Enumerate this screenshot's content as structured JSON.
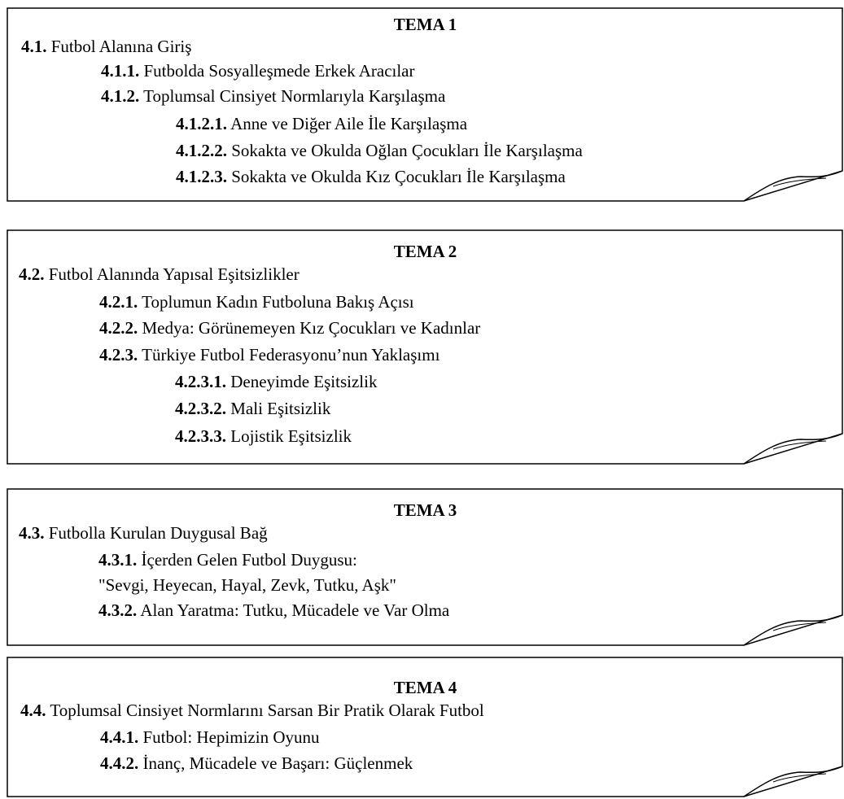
{
  "themes": [
    {
      "title": "TEMA 1",
      "lines": [
        {
          "num": "4.1.",
          "text": " Futbol Alanına Giriş"
        },
        {
          "num": "4.1.1.",
          "text": " Futbolda Sosyalleşmede Erkek Aracılar"
        },
        {
          "num": "4.1.2.",
          "text": " Toplumsal Cinsiyet Normlarıyla Karşılaşma"
        },
        {
          "num": "4.1.2.1.",
          "text": " Anne ve Diğer Aile İle Karşılaşma"
        },
        {
          "num": "4.1.2.2.",
          "text": " Sokakta ve Okulda Oğlan Çocukları İle Karşılaşma"
        },
        {
          "num": "4.1.2.3.",
          "text": " Sokakta ve Okulda Kız Çocukları İle Karşılaşma"
        }
      ]
    },
    {
      "title": "TEMA 2",
      "lines": [
        {
          "num": "4.2.",
          "text": " Futbol Alanında Yapısal Eşitsizlikler"
        },
        {
          "num": "4.2.1.",
          "text": " Toplumun Kadın Futboluna Bakış Açısı"
        },
        {
          "num": "4.2.2.",
          "text": " Medya: Görünemeyen Kız Çocukları ve Kadınlar"
        },
        {
          "num": "4.2.3.",
          "text": " Türkiye Futbol Federasyonu’nun Yaklaşımı"
        },
        {
          "num": "4.2.3.1.",
          "text": " Deneyimde Eşitsizlik"
        },
        {
          "num": "4.2.3.2.",
          "text": " Mali Eşitsizlik"
        },
        {
          "num": "4.2.3.3.",
          "text": " Lojistik Eşitsizlik"
        }
      ]
    },
    {
      "title": "TEMA 3",
      "lines": [
        {
          "num": "4.3.",
          "text": " Futbolla Kurulan Duygusal Bağ"
        },
        {
          "num": "4.3.1.",
          "text": " İçerden Gelen Futbol Duygusu:"
        },
        {
          "num": "",
          "text": "\"Sevgi, Heyecan, Hayal, Zevk, Tutku, Aşk\""
        },
        {
          "num": "4.3.2.",
          "text": " Alan Yaratma: Tutku, Mücadele ve Var Olma"
        }
      ]
    },
    {
      "title": "TEMA 4",
      "lines": [
        {
          "num": "4.4.",
          "text": " Toplumsal Cinsiyet Normlarını Sarsan Bir Pratik Olarak Futbol"
        },
        {
          "num": "4.4.1.",
          "text": " Futbol: Hepimizin Oyunu"
        },
        {
          "num": "4.4.2.",
          "text": " İnanç, Mücadele ve Başarı: Güçlenmek"
        }
      ]
    }
  ]
}
